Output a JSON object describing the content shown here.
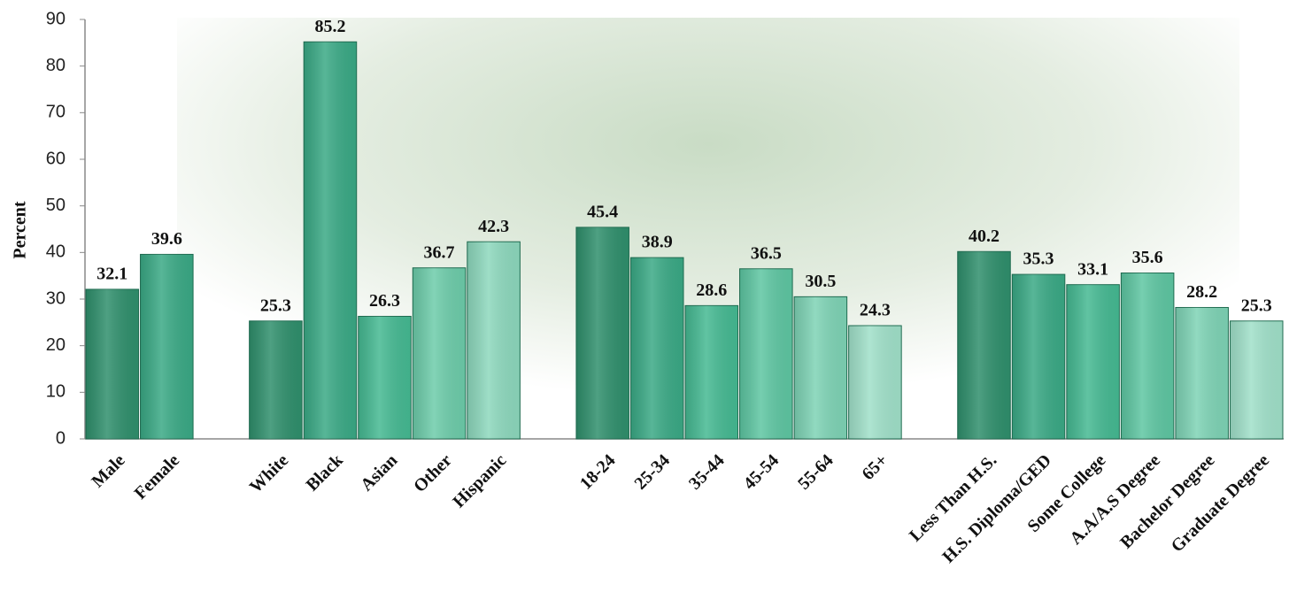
{
  "chart_data": {
    "type": "bar",
    "y_label": "Percent",
    "categories": [
      "Male",
      "Female",
      null,
      "White",
      "Black",
      "Asian",
      "Other",
      "Hispanic",
      null,
      "18-24",
      "25-34",
      "35-44",
      "45-54",
      "55-64",
      "65+",
      null,
      "Less Than H.S.",
      "H.S. Diploma/GED",
      "Some College",
      "A.A/A.S Degree",
      "Bachelor Degree",
      "Graduate Degree"
    ],
    "values": [
      32.1,
      39.6,
      null,
      25.3,
      85.2,
      26.3,
      36.7,
      42.3,
      null,
      45.4,
      38.9,
      28.6,
      36.5,
      30.5,
      24.3,
      null,
      40.2,
      35.3,
      33.1,
      35.6,
      28.2,
      25.3
    ],
    "colors": [
      "#2f8f6c",
      "#3aa985",
      null,
      "#2f8f6c",
      "#3aa985",
      "#45b992",
      "#6dccaa",
      "#8dd8bd",
      null,
      "#2f8f6c",
      "#3aa985",
      "#45b992",
      "#5ec6a2",
      "#7ed3b5",
      "#a0e0c9",
      null,
      "#2f8f6c",
      "#3aa985",
      "#45b992",
      "#5ec6a2",
      "#7ed3b5",
      "#a0e0c9"
    ],
    "ylim": [
      0,
      90
    ],
    "yticks": [
      0,
      10,
      20,
      30,
      40,
      50,
      60,
      70,
      80,
      90
    ],
    "grid": false
  }
}
